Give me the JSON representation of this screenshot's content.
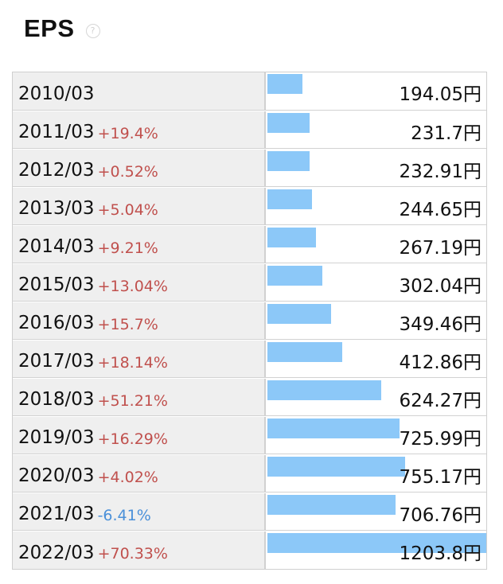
{
  "header": {
    "title": "EPS",
    "help_icon": "question-circle-icon",
    "help_icon_glyph": "?"
  },
  "colors": {
    "bar": "#8cc8f8",
    "positive_change": "#c0504d",
    "negative_change": "#4a90d9",
    "label_background": "#efefef"
  },
  "chart_data": {
    "type": "bar",
    "orientation": "horizontal",
    "title": "EPS",
    "unit": "円",
    "xlim": [
      0,
      1203.8
    ],
    "categories": [
      "2010/03",
      "2011/03",
      "2012/03",
      "2013/03",
      "2014/03",
      "2015/03",
      "2016/03",
      "2017/03",
      "2018/03",
      "2019/03",
      "2020/03",
      "2021/03",
      "2022/03"
    ],
    "values": [
      194.05,
      231.7,
      232.91,
      244.65,
      267.19,
      302.04,
      349.46,
      412.86,
      624.27,
      725.99,
      755.17,
      706.76,
      1203.8
    ],
    "rows": [
      {
        "year": "2010/03",
        "change": "",
        "direction": "none",
        "value": 194.05,
        "value_label": "194.05円"
      },
      {
        "year": "2011/03",
        "change": "+19.4%",
        "direction": "up",
        "value": 231.7,
        "value_label": "231.7円"
      },
      {
        "year": "2012/03",
        "change": "+0.52%",
        "direction": "up",
        "value": 232.91,
        "value_label": "232.91円"
      },
      {
        "year": "2013/03",
        "change": "+5.04%",
        "direction": "up",
        "value": 244.65,
        "value_label": "244.65円"
      },
      {
        "year": "2014/03",
        "change": "+9.21%",
        "direction": "up",
        "value": 267.19,
        "value_label": "267.19円"
      },
      {
        "year": "2015/03",
        "change": "+13.04%",
        "direction": "up",
        "value": 302.04,
        "value_label": "302.04円"
      },
      {
        "year": "2016/03",
        "change": "+15.7%",
        "direction": "up",
        "value": 349.46,
        "value_label": "349.46円"
      },
      {
        "year": "2017/03",
        "change": "+18.14%",
        "direction": "up",
        "value": 412.86,
        "value_label": "412.86円"
      },
      {
        "year": "2018/03",
        "change": "+51.21%",
        "direction": "up",
        "value": 624.27,
        "value_label": "624.27円"
      },
      {
        "year": "2019/03",
        "change": "+16.29%",
        "direction": "up",
        "value": 725.99,
        "value_label": "725.99円"
      },
      {
        "year": "2020/03",
        "change": "+4.02%",
        "direction": "up",
        "value": 755.17,
        "value_label": "755.17円"
      },
      {
        "year": "2021/03",
        "change": "-6.41%",
        "direction": "down",
        "value": 706.76,
        "value_label": "706.76円"
      },
      {
        "year": "2022/03",
        "change": "+70.33%",
        "direction": "up",
        "value": 1203.8,
        "value_label": "1203.8円"
      }
    ]
  }
}
